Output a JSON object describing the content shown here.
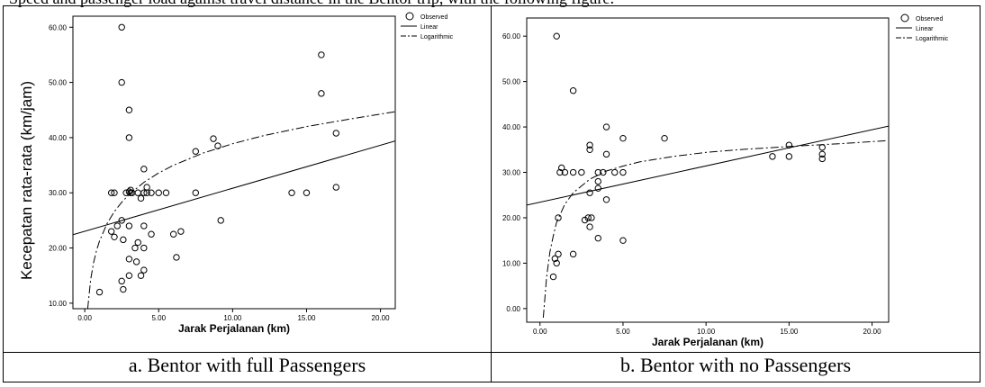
{
  "top_text": "Speed and passenger load against travel distance in the Bentor trip, with the following figure:",
  "captions": [
    "a. Bentor with full Passengers",
    "b. Bentor with no Passengers"
  ],
  "legend": {
    "observed": "Observed",
    "linear": "Linear",
    "log": "Logarithmic"
  },
  "chart_data": [
    {
      "type": "scatter",
      "xlabel": "Jarak Perjalanan (km)",
      "ylabel": "Kecepatan rata-rata (km/jam)",
      "xlim": [
        -0.8,
        21
      ],
      "ylim": [
        9,
        62
      ],
      "xticks": [
        "0.00",
        "5.00",
        "10.00",
        "15.00",
        "20.00"
      ],
      "yticks": [
        "10.00",
        "20.00",
        "30.00",
        "40.00",
        "50.00",
        "60.00"
      ],
      "xtick_values": [
        0,
        5,
        10,
        15,
        20
      ],
      "ytick_values": [
        10,
        20,
        30,
        40,
        50,
        60
      ],
      "legend_position": "top-right",
      "series": [
        {
          "name": "Observed",
          "kind": "points",
          "x": [
            1.0,
            1.8,
            2.0,
            2.0,
            1.8,
            2.2,
            2.5,
            2.5,
            2.5,
            2.5,
            2.6,
            2.6,
            2.8,
            3.0,
            3.0,
            3.0,
            3.0,
            3.0,
            3.0,
            3.1,
            3.1,
            3.2,
            3.4,
            3.5,
            3.6,
            3.6,
            3.8,
            3.8,
            4.0,
            4.0,
            4.0,
            4.0,
            4.0,
            4.2,
            4.2,
            4.5,
            4.5,
            5.0,
            5.5,
            6.0,
            6.2,
            6.5,
            7.5,
            7.5,
            8.7,
            9.0,
            9.2,
            14.0,
            15.0,
            16.0,
            16.0,
            17.0,
            17.0
          ],
          "y": [
            12.0,
            30.0,
            30.0,
            22.0,
            23.0,
            24.0,
            60.0,
            50.0,
            25.0,
            14.0,
            12.5,
            21.5,
            30.0,
            45.0,
            40.0,
            30.2,
            15.0,
            24.0,
            18.0,
            30.0,
            30.5,
            30.0,
            20.0,
            17.5,
            21.0,
            30.0,
            15.0,
            29.0,
            34.3,
            30.0,
            24.0,
            20.0,
            16.0,
            31.0,
            30.0,
            30.0,
            22.5,
            30.0,
            30.0,
            22.5,
            18.3,
            23.0,
            37.5,
            30.0,
            39.8,
            38.5,
            25.0,
            30.0,
            30.0,
            55.0,
            48.0,
            40.8,
            31.0
          ]
        },
        {
          "name": "Linear",
          "kind": "line",
          "x": [
            -0.8,
            21.0
          ],
          "y": [
            22.4,
            39.4
          ]
        },
        {
          "name": "Logarithmic",
          "kind": "curve",
          "x": [
            0.2,
            0.4,
            0.6,
            0.8,
            1.0,
            1.5,
            2.0,
            2.5,
            3.0,
            4.0,
            5.0,
            6.0,
            8.0,
            10.0,
            12.0,
            15.0,
            18.0,
            21.0
          ],
          "y": [
            9.0,
            14.3,
            17.4,
            19.6,
            21.3,
            24.4,
            26.6,
            28.3,
            29.7,
            31.9,
            33.6,
            35.0,
            37.2,
            38.9,
            40.3,
            42.0,
            43.4,
            44.7
          ]
        }
      ]
    },
    {
      "type": "scatter",
      "xlabel": "Jarak Perjalanan (km)",
      "ylabel": "",
      "xlim": [
        -0.8,
        21
      ],
      "ylim": [
        -3,
        64
      ],
      "xticks": [
        "0.00",
        "5.00",
        "10.00",
        "15.00",
        "20.00"
      ],
      "yticks": [
        "0.00",
        "10.00",
        "20.00",
        "30.00",
        "40.00",
        "50.00",
        "60.00"
      ],
      "xtick_values": [
        0,
        5,
        10,
        15,
        20
      ],
      "ytick_values": [
        0,
        10,
        20,
        30,
        40,
        50,
        60
      ],
      "legend_position": "top-right",
      "series": [
        {
          "name": "Observed",
          "kind": "points",
          "x": [
            0.8,
            0.9,
            1.0,
            1.0,
            1.1,
            1.1,
            1.2,
            1.3,
            1.5,
            2.0,
            2.0,
            2.0,
            2.5,
            2.7,
            2.9,
            3.0,
            3.0,
            3.0,
            3.0,
            3.1,
            3.5,
            3.5,
            3.5,
            3.5,
            3.8,
            4.0,
            4.0,
            4.0,
            4.5,
            5.0,
            5.0,
            5.0,
            7.5,
            14.0,
            15.0,
            15.0,
            17.0,
            17.0,
            17.0
          ],
          "y": [
            7.0,
            11.0,
            10.0,
            60.0,
            12.0,
            20.0,
            30.0,
            31.0,
            30.0,
            48.0,
            30.0,
            12.0,
            30.0,
            19.5,
            20.0,
            36.0,
            35.0,
            18.0,
            25.5,
            20.0,
            26.5,
            28.0,
            30.0,
            15.5,
            30.0,
            40.0,
            34.0,
            24.0,
            30.0,
            37.5,
            30.0,
            15.0,
            37.5,
            33.5,
            36.0,
            33.5,
            35.5,
            34.0,
            33.0
          ]
        },
        {
          "name": "Linear",
          "kind": "line",
          "x": [
            -0.8,
            21.0
          ],
          "y": [
            22.8,
            40.2
          ]
        },
        {
          "name": "Logarithmic",
          "kind": "curve",
          "x": [
            0.2,
            0.4,
            0.6,
            0.8,
            1.0,
            1.5,
            2.0,
            3.0,
            4.0,
            5.0,
            6.0,
            8.0,
            10.0,
            12.0,
            15.0,
            18.0,
            21.0
          ],
          "y": [
            -2.0,
            7.0,
            12.5,
            16.0,
            19.0,
            23.0,
            25.5,
            28.5,
            30.3,
            31.4,
            32.3,
            33.5,
            34.4,
            35.0,
            35.7,
            36.3,
            37.0
          ]
        }
      ]
    }
  ]
}
